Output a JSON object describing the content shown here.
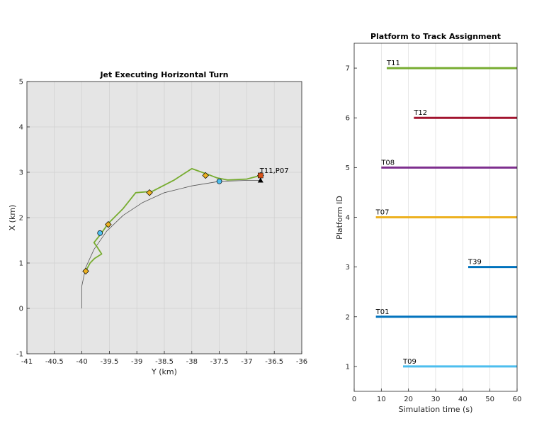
{
  "chart_data": [
    {
      "type": "line",
      "title": "Jet Executing Horizontal Turn",
      "xlabel": "Y (km)",
      "ylabel": "X (km)",
      "xlim": [
        -41,
        -36
      ],
      "ylim": [
        -1,
        5
      ],
      "x_ticks": [
        "-41",
        "-40.5",
        "-40",
        "-39.5",
        "-39",
        "-38.5",
        "-38",
        "-37.5",
        "-37",
        "-36.5",
        "-36"
      ],
      "y_ticks": [
        "-1",
        "0",
        "1",
        "2",
        "3",
        "4",
        "5"
      ],
      "grid": true,
      "background": "#e5e5e5",
      "annotation": {
        "text": "T11,P07",
        "x": -36.75,
        "y": 2.95
      },
      "series": [
        {
          "role": "truth",
          "color": "#555555",
          "points": [
            [
              -40,
              0
            ],
            [
              -40,
              0.5
            ],
            [
              -39.93,
              0.9
            ],
            [
              -39.78,
              1.3
            ],
            [
              -39.55,
              1.7
            ],
            [
              -39.25,
              2.05
            ],
            [
              -38.9,
              2.33
            ],
            [
              -38.5,
              2.55
            ],
            [
              -38.0,
              2.7
            ],
            [
              -37.5,
              2.8
            ],
            [
              -37.0,
              2.82
            ],
            [
              -36.75,
              2.82
            ]
          ]
        },
        {
          "role": "track",
          "color": "#77ac30",
          "points": [
            [
              -39.93,
              0.82
            ],
            [
              -39.85,
              1.0
            ],
            [
              -39.77,
              1.1
            ],
            [
              -39.64,
              1.2
            ],
            [
              -39.72,
              1.35
            ],
            [
              -39.78,
              1.45
            ],
            [
              -39.65,
              1.65
            ],
            [
              -39.52,
              1.87
            ],
            [
              -39.25,
              2.2
            ],
            [
              -39.02,
              2.55
            ],
            [
              -38.72,
              2.58
            ],
            [
              -38.32,
              2.83
            ],
            [
              -38.0,
              3.08
            ],
            [
              -37.7,
              2.95
            ],
            [
              -37.55,
              2.88
            ],
            [
              -37.35,
              2.83
            ],
            [
              -37.0,
              2.85
            ],
            [
              -36.75,
              2.93
            ]
          ]
        }
      ],
      "detections": [
        [
          -39.93,
          0.82
        ],
        [
          -39.52,
          1.85
        ],
        [
          -38.77,
          2.55
        ],
        [
          -37.75,
          2.93
        ],
        [
          -36.75,
          2.93
        ]
      ],
      "estimates": [
        [
          -39.67,
          1.66
        ],
        [
          -37.5,
          2.8
        ]
      ]
    },
    {
      "type": "bar",
      "orientation": "horizontal",
      "title": "Platform to Track Assignment",
      "xlabel": "Simulation time (s)",
      "ylabel": "Platform ID",
      "xlim": [
        0,
        60
      ],
      "ylim": [
        0.5,
        7.5
      ],
      "x_ticks": [
        "0",
        "10",
        "20",
        "30",
        "40",
        "50",
        "60"
      ],
      "y_ticks": [
        "1",
        "2",
        "3",
        "4",
        "5",
        "6",
        "7"
      ],
      "grid": true,
      "series": [
        {
          "track": "T11",
          "platform": 7,
          "start": 12,
          "end": 60,
          "color": "#77ac30"
        },
        {
          "track": "T12",
          "platform": 6,
          "start": 22,
          "end": 60,
          "color": "#a2142f"
        },
        {
          "track": "T08",
          "platform": 5,
          "start": 10,
          "end": 60,
          "color": "#7e2f8e"
        },
        {
          "track": "T07",
          "platform": 4,
          "start": 8,
          "end": 60,
          "color": "#edb120"
        },
        {
          "track": "T39",
          "platform": 3,
          "start": 42,
          "end": 60,
          "color": "#0072bd"
        },
        {
          "track": "T01",
          "platform": 2,
          "start": 8,
          "end": 60,
          "color": "#0072bd"
        },
        {
          "track": "T09",
          "platform": 1,
          "start": 18,
          "end": 60,
          "color": "#4dbeee"
        }
      ]
    }
  ]
}
